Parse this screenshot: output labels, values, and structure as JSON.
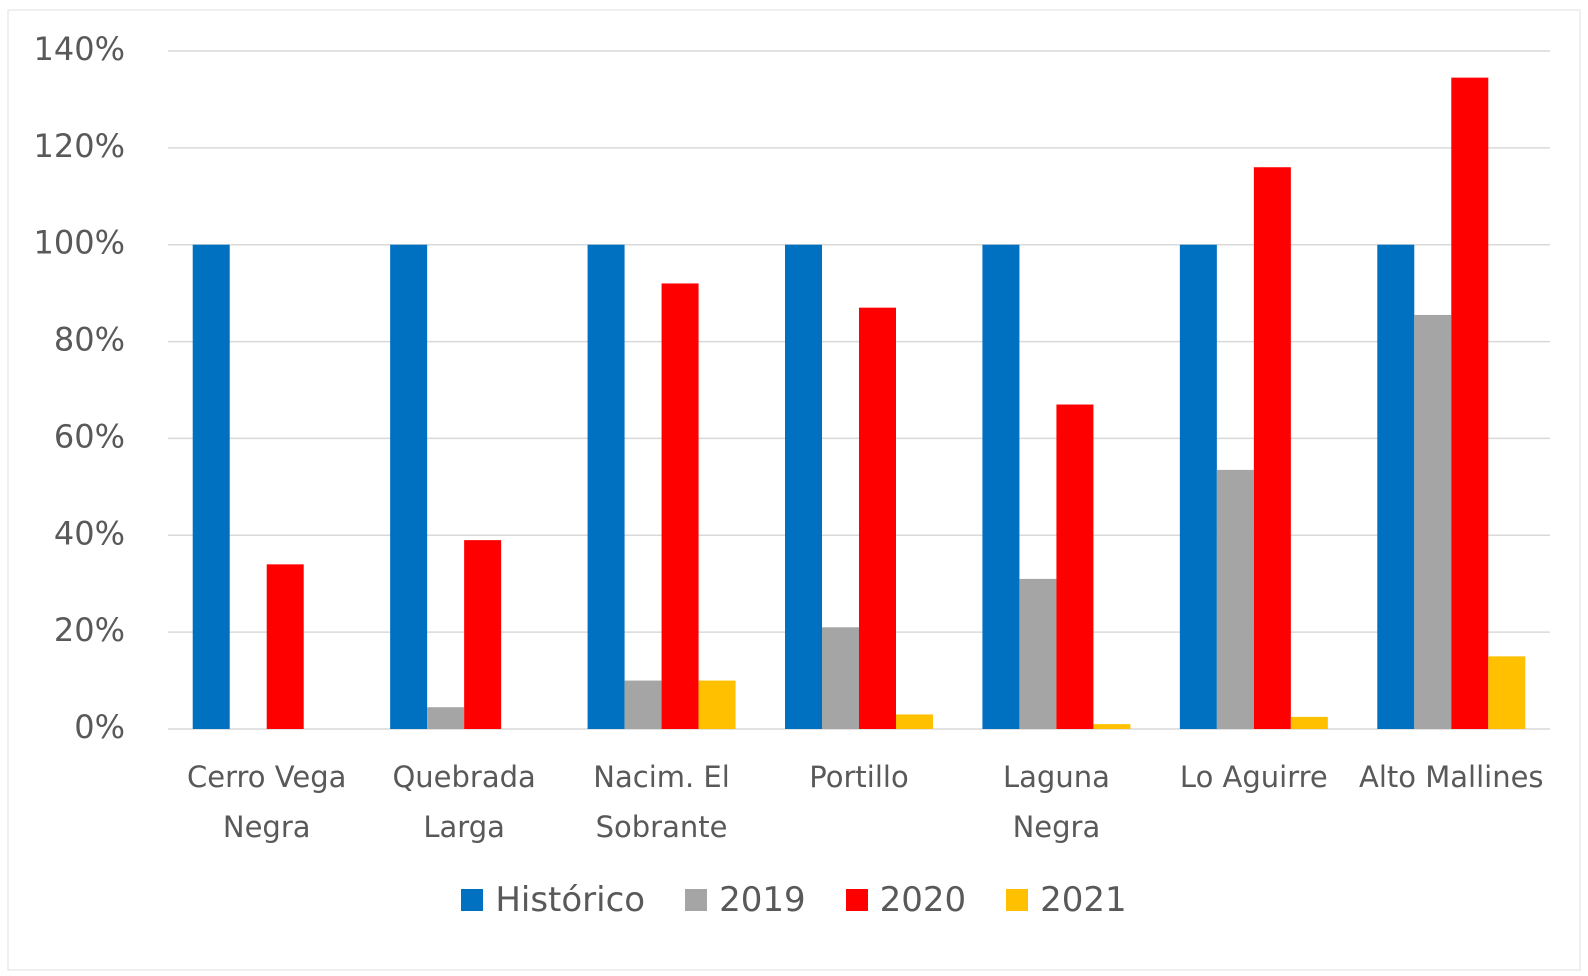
{
  "chart_data": {
    "type": "bar",
    "categories": [
      "Cerro Vega Negra",
      "Quebrada Larga",
      "Nacim. El Sobrante",
      "Portillo",
      "Laguna Negra",
      "Lo Aguirre",
      "Alto Mallines"
    ],
    "series": [
      {
        "name": "Histórico",
        "color": "#0070c0",
        "values": [
          100,
          100,
          100,
          100,
          100,
          100,
          100
        ]
      },
      {
        "name": "2019",
        "color": "#a5a5a5",
        "values": [
          0,
          4.5,
          10,
          21,
          31,
          53.5,
          85.5
        ]
      },
      {
        "name": "2020",
        "color": "#ff0000",
        "values": [
          34,
          39,
          92,
          87,
          67,
          116,
          134.5
        ]
      },
      {
        "name": "2021",
        "color": "#ffc000",
        "values": [
          0,
          0,
          10,
          3,
          1,
          2.5,
          15
        ]
      }
    ],
    "ylim": [
      0,
      140
    ],
    "yticks": [
      {
        "value": 0,
        "label": "0%"
      },
      {
        "value": 20,
        "label": "20%"
      },
      {
        "value": 40,
        "label": "40%"
      },
      {
        "value": 60,
        "label": "60%"
      },
      {
        "value": 80,
        "label": "80%"
      },
      {
        "value": 100,
        "label": "100%"
      },
      {
        "value": 120,
        "label": "120%"
      },
      {
        "value": 140,
        "label": "140%"
      }
    ],
    "grid": true,
    "legend": "bottom"
  }
}
